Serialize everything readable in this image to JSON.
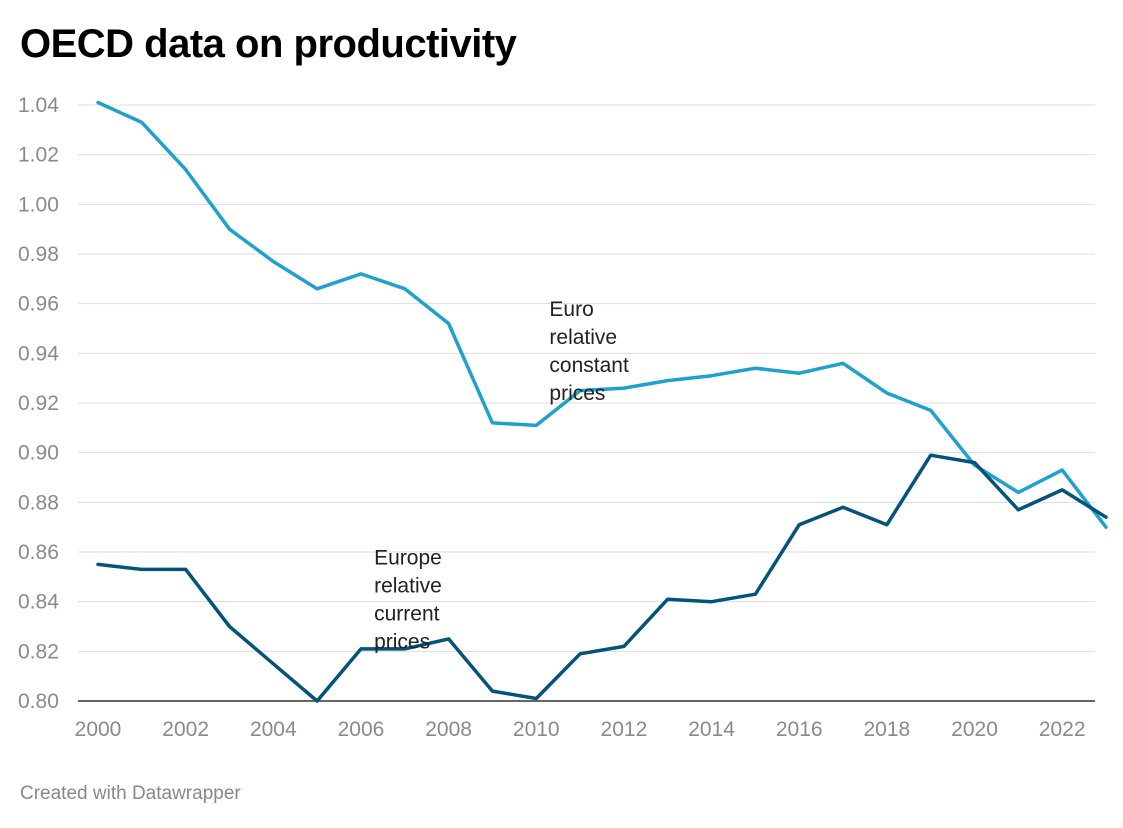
{
  "title": "OECD data on productivity",
  "footer": "Created with Datawrapper",
  "colors": {
    "constant": "#1fa0cf",
    "current": "#03537a",
    "grid": "#dddddd",
    "axis": "#333333"
  },
  "chart_data": {
    "type": "line",
    "title": "OECD data on productivity",
    "x": [
      2000,
      2001,
      2002,
      2003,
      2004,
      2005,
      2006,
      2007,
      2008,
      2009,
      2010,
      2011,
      2012,
      2013,
      2014,
      2015,
      2016,
      2017,
      2018,
      2019,
      2020,
      2021,
      2022,
      2023
    ],
    "xticks": [
      "2000",
      "2002",
      "2004",
      "2006",
      "2008",
      "2010",
      "2012",
      "2014",
      "2016",
      "2018",
      "2020",
      "2022"
    ],
    "yticks": [
      "0.80",
      "0.82",
      "0.84",
      "0.86",
      "0.88",
      "0.90",
      "0.92",
      "0.94",
      "0.96",
      "0.98",
      "1.00",
      "1.02",
      "1.04"
    ],
    "xlim": [
      2000,
      2023
    ],
    "ylim": [
      0.8,
      1.04
    ],
    "grid": "horizontal",
    "series": [
      {
        "name": "Euro relative constant prices",
        "label_lines": [
          "Euro",
          "relative",
          "constant",
          "prices"
        ],
        "label_year": 2010.3,
        "label_value": 0.955,
        "color": "#1fa0cf",
        "values": [
          1.041,
          1.033,
          1.014,
          0.99,
          0.977,
          0.966,
          0.972,
          0.966,
          0.952,
          0.912,
          0.911,
          0.925,
          0.926,
          0.929,
          0.931,
          0.934,
          0.932,
          0.936,
          0.924,
          0.917,
          0.895,
          0.884,
          0.893,
          0.87
        ]
      },
      {
        "name": "Europe relative current prices",
        "label_lines": [
          "Europe",
          "relative",
          "current",
          "prices"
        ],
        "label_year": 2006.3,
        "label_value": 0.855,
        "color": "#03537a",
        "values": [
          0.855,
          0.853,
          0.853,
          0.83,
          0.815,
          0.8,
          0.821,
          0.821,
          0.825,
          0.804,
          0.801,
          0.819,
          0.822,
          0.841,
          0.84,
          0.843,
          0.871,
          0.878,
          0.871,
          0.899,
          0.896,
          0.877,
          0.885,
          0.874
        ]
      }
    ]
  }
}
